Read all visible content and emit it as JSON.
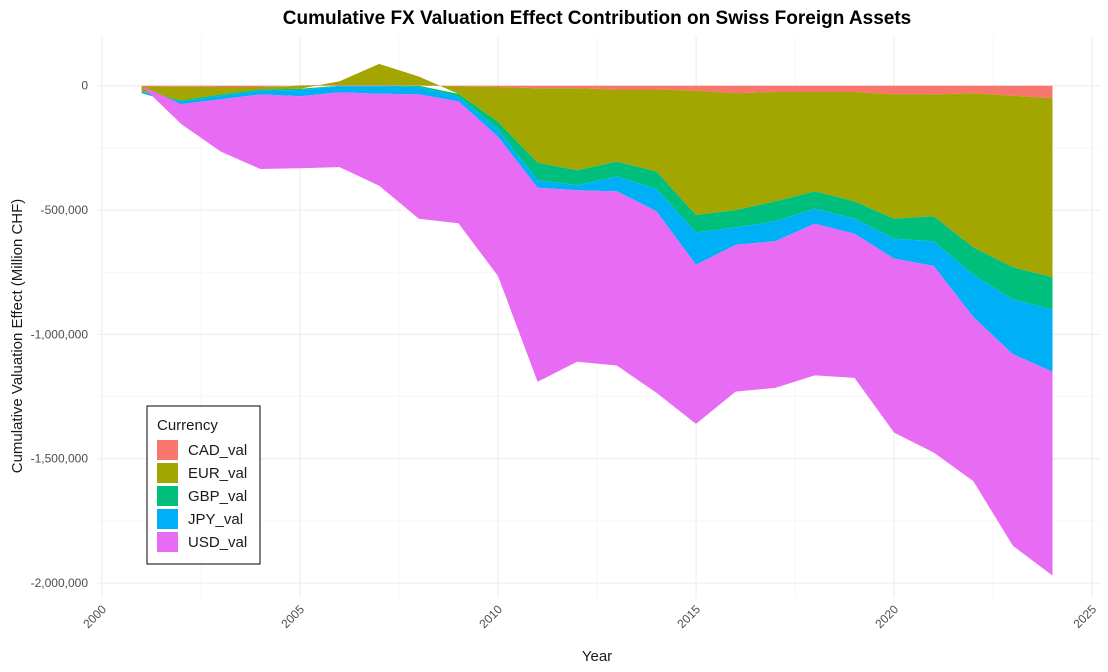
{
  "chart_data": {
    "type": "area",
    "title": "Cumulative FX Valuation Effect Contribution on Swiss Foreign Assets",
    "xlabel": "Year",
    "ylabel": "Cumulative Valuation Effect (Million CHF)",
    "xlim": [
      1999.9,
      2025.2
    ],
    "ylim": [
      -2060000,
      200000
    ],
    "x_ticks": [
      2000,
      2005,
      2010,
      2015,
      2020,
      2025
    ],
    "y_ticks": [
      0,
      -500000,
      -1000000,
      -1500000,
      -2000000
    ],
    "y_tick_labels": [
      "0",
      "-500,000",
      "-1,000,000",
      "-1,500,000",
      "-2,000,000"
    ],
    "grid": true,
    "legend": {
      "title": "Currency",
      "position": "bottom-left"
    },
    "x": [
      2001,
      2002,
      2003,
      2004,
      2005,
      2006,
      2007,
      2008,
      2009,
      2010,
      2011,
      2012,
      2013,
      2014,
      2015,
      2016,
      2017,
      2018,
      2019,
      2020,
      2021,
      2022,
      2023,
      2024
    ],
    "series": [
      {
        "name": "CAD_val",
        "color": "#F8766D",
        "values": [
          -3000,
          -4000,
          -5000,
          -5000,
          2000,
          3000,
          3000,
          2000,
          -3000,
          -5000,
          -10000,
          -10000,
          -15000,
          -15000,
          -20000,
          -30000,
          -25000,
          -25000,
          -25000,
          -35000,
          -35000,
          -30000,
          -40000,
          -50000
        ]
      },
      {
        "name": "EUR_val",
        "color": "#A3A500",
        "values": [
          -20000,
          -55000,
          -30000,
          -10000,
          -12000,
          15000,
          85000,
          35000,
          -30000,
          -140000,
          -300000,
          -330000,
          -290000,
          -330000,
          -500000,
          -470000,
          -440000,
          -400000,
          -440000,
          -500000,
          -490000,
          -620000,
          -690000,
          -720000
        ]
      },
      {
        "name": "GBP_val",
        "color": "#00BF7D",
        "values": [
          -2000,
          -5000,
          -5000,
          -5000,
          -5000,
          -2000,
          -2000,
          -5000,
          -10000,
          -30000,
          -70000,
          -60000,
          -60000,
          -70000,
          -70000,
          -70000,
          -80000,
          -70000,
          -70000,
          -80000,
          -100000,
          -110000,
          -130000,
          -130000
        ]
      },
      {
        "name": "JPY_val",
        "color": "#00B0F6",
        "values": [
          -5000,
          -10000,
          -15000,
          -15000,
          -25000,
          -25000,
          -30000,
          -30000,
          -20000,
          -30000,
          -30000,
          -20000,
          -60000,
          -90000,
          -130000,
          -70000,
          -80000,
          -60000,
          -60000,
          -80000,
          -100000,
          -170000,
          -220000,
          -250000
        ]
      },
      {
        "name": "USD_val",
        "color": "#E76BF3",
        "values": [
          0,
          -80000,
          -210000,
          -300000,
          -290000,
          -300000,
          -370000,
          -500000,
          -490000,
          -560000,
          -780000,
          -690000,
          -700000,
          -730000,
          -640000,
          -590000,
          -590000,
          -610000,
          -580000,
          -700000,
          -750000,
          -660000,
          -770000,
          -820000
        ]
      }
    ]
  }
}
